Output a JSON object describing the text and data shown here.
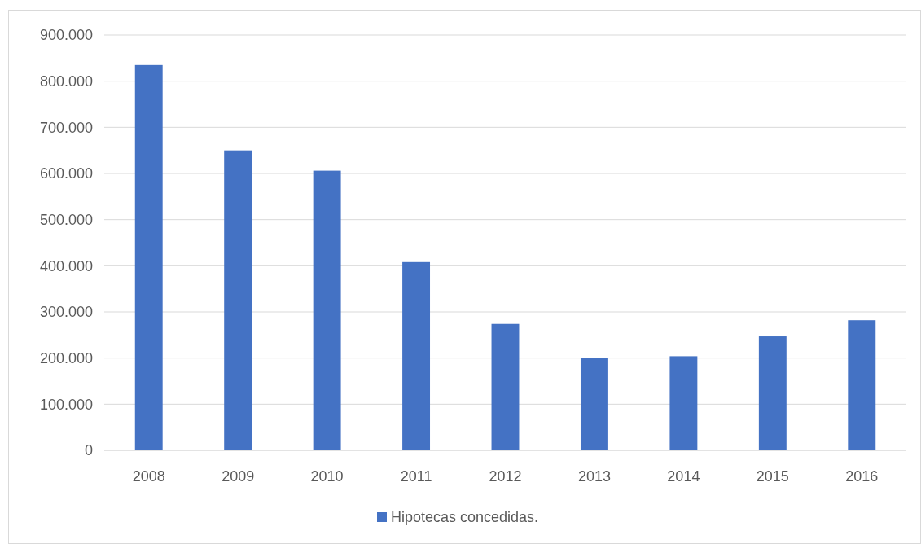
{
  "chart_data": {
    "type": "bar",
    "categories": [
      "2008",
      "2009",
      "2010",
      "2011",
      "2012",
      "2013",
      "2014",
      "2015",
      "2016"
    ],
    "series": [
      {
        "name": "Hipotecas concedidas.",
        "color": "#4472c4",
        "values": [
          835000,
          650000,
          606000,
          408000,
          274000,
          200000,
          204000,
          247000,
          282000
        ]
      }
    ],
    "ylim": [
      0,
      900000
    ],
    "yticks": [
      {
        "value": 0,
        "label": "0"
      },
      {
        "value": 100000,
        "label": "100.000"
      },
      {
        "value": 200000,
        "label": "200.000"
      },
      {
        "value": 300000,
        "label": "300.000"
      },
      {
        "value": 400000,
        "label": "400.000"
      },
      {
        "value": 500000,
        "label": "500.000"
      },
      {
        "value": 600000,
        "label": "600.000"
      },
      {
        "value": 700000,
        "label": "700.000"
      },
      {
        "value": 800000,
        "label": "800.000"
      },
      {
        "value": 900000,
        "label": "900.000"
      }
    ],
    "grid": "y",
    "legend": "bottom"
  }
}
